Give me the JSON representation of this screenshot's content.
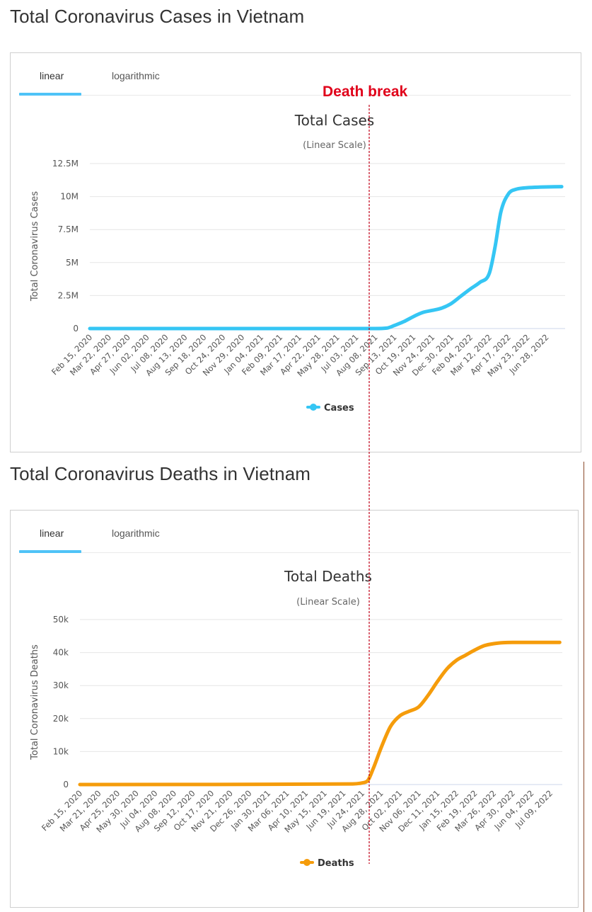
{
  "cases_section": {
    "title": "Total Coronavirus Cases in Vietnam",
    "tabs": [
      {
        "label": "linear"
      },
      {
        "label": "logarithmic"
      }
    ]
  },
  "deaths_section": {
    "title": "Total Coronavirus Deaths in Vietnam",
    "tabs": [
      {
        "label": "linear"
      },
      {
        "label": "logarithmic"
      }
    ]
  },
  "annotation": {
    "label": "Death break",
    "color": "#e0001a"
  },
  "colors": {
    "cases": "#35c6f4",
    "deaths": "#f59c0b",
    "tab_active": "#4fc3f7"
  },
  "chart_data": [
    {
      "type": "line",
      "title": "Total Cases",
      "subtitle": "(Linear Scale)",
      "ylabel": "Total Coronavirus Cases",
      "xlabel": "",
      "ylim": [
        0,
        12500000
      ],
      "yticks": [
        0,
        2500000,
        5000000,
        7500000,
        10000000,
        12500000
      ],
      "ytick_labels": [
        "0",
        "2.5M",
        "5M",
        "7.5M",
        "10M",
        "12.5M"
      ],
      "x_labels": [
        "Feb 15, 2020",
        "Mar 22, 2020",
        "Apr 27, 2020",
        "Jun 02, 2020",
        "Jul 08, 2020",
        "Aug 13, 2020",
        "Sep 18, 2020",
        "Oct 24, 2020",
        "Nov 29, 2020",
        "Jan 04, 2021",
        "Feb 09, 2021",
        "Mar 17, 2021",
        "Apr 22, 2021",
        "May 28, 2021",
        "Jul 03, 2021",
        "Aug 08, 2021",
        "Sep 13, 2021",
        "Oct 19, 2021",
        "Nov 24, 2021",
        "Dec 30, 2021",
        "Feb 04, 2022",
        "Mar 12, 2022",
        "Apr 17, 2022",
        "May 23, 2022",
        "Jun 28, 2022"
      ],
      "series": [
        {
          "name": "Cases",
          "x": [
            0,
            15,
            15.6,
            16,
            16.5,
            17,
            17.5,
            18,
            18.5,
            19,
            19.5,
            20,
            20.5,
            21,
            21.3,
            21.6,
            22,
            22.4,
            22.8,
            23.3,
            24,
            24.8
          ],
          "values": [
            0,
            0,
            30000,
            230000,
            520000,
            900000,
            1220000,
            1380000,
            1550000,
            1900000,
            2450000,
            3000000,
            3500000,
            4200000,
            6200000,
            8800000,
            10200000,
            10550000,
            10650000,
            10700000,
            10730000,
            10750000
          ]
        }
      ],
      "legend": "bottom-center"
    },
    {
      "type": "line",
      "title": "Total Deaths",
      "subtitle": "(Linear Scale)",
      "ylabel": "Total Coronavirus Deaths",
      "xlabel": "",
      "ylim": [
        0,
        50000
      ],
      "yticks": [
        0,
        10000,
        20000,
        30000,
        40000,
        50000
      ],
      "ytick_labels": [
        "0",
        "10k",
        "20k",
        "30k",
        "40k",
        "50k"
      ],
      "x_labels": [
        "Feb 15, 2020",
        "Mar 21, 2020",
        "Apr 25, 2020",
        "May 30, 2020",
        "Jul 04, 2020",
        "Aug 08, 2020",
        "Sep 12, 2020",
        "Oct 17, 2020",
        "Nov 21, 2020",
        "Dec 26, 2020",
        "Jan 30, 2021",
        "Mar 06, 2021",
        "Apr 10, 2021",
        "May 15, 2021",
        "Jun 19, 2021",
        "Jul 24, 2021",
        "Aug 28, 2021",
        "Oct 02, 2021",
        "Nov 06, 2021",
        "Dec 11, 2021",
        "Jan 15, 2022",
        "Feb 19, 2022",
        "Mar 26, 2022",
        "Apr 30, 2022",
        "Jun 04, 2022",
        "Jul 09, 2022"
      ],
      "series": [
        {
          "name": "Deaths",
          "x": [
            0,
            14.5,
            15,
            15.3,
            15.6,
            16,
            16.5,
            17,
            17.5,
            18,
            18.5,
            19,
            19.5,
            20,
            20.5,
            21,
            21.5,
            22,
            22.5,
            23,
            24,
            25.5
          ],
          "values": [
            0,
            200,
            500,
            1200,
            5000,
            11000,
            17500,
            20800,
            22200,
            23500,
            27000,
            31200,
            35000,
            37600,
            39200,
            40800,
            42100,
            42700,
            43000,
            43100,
            43100,
            43100
          ]
        }
      ],
      "legend": "bottom-center"
    }
  ]
}
